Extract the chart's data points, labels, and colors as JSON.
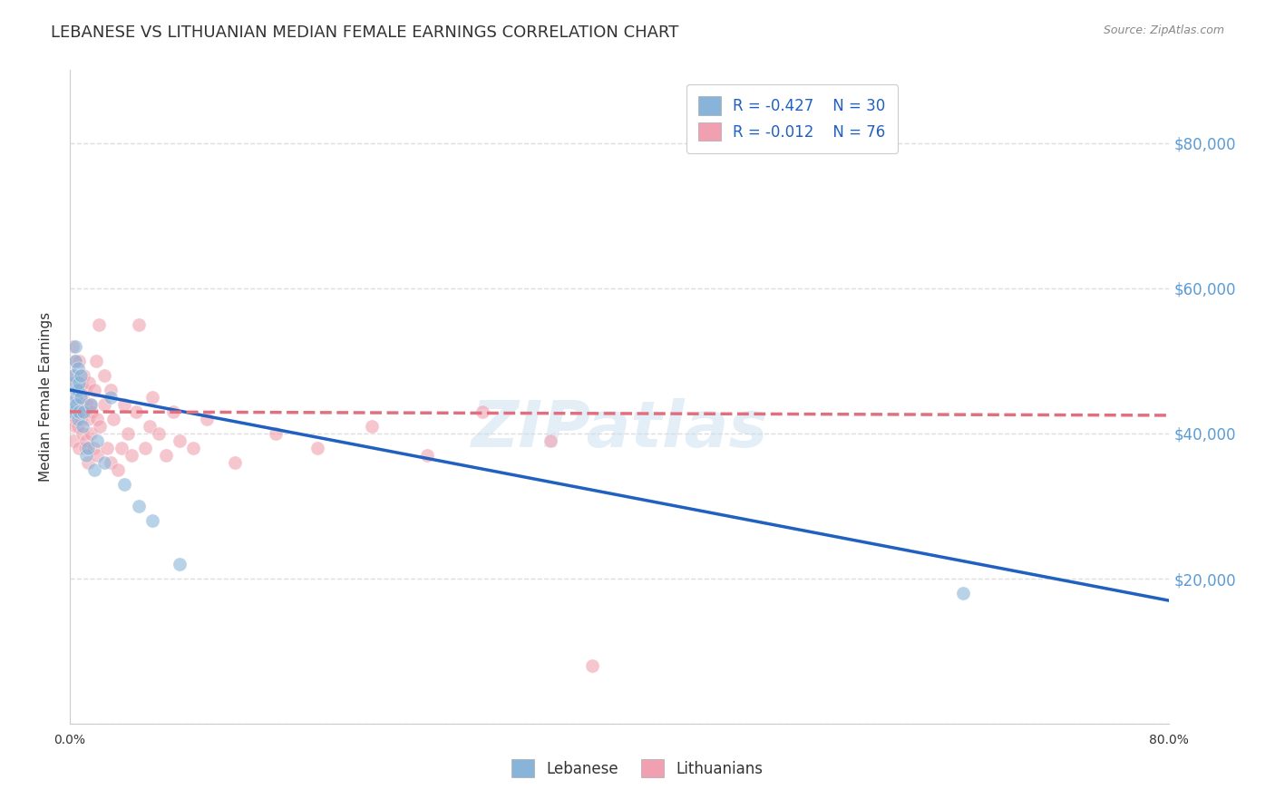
{
  "title": "LEBANESE VS LITHUANIAN MEDIAN FEMALE EARNINGS CORRELATION CHART",
  "source": "Source: ZipAtlas.com",
  "ylabel": "Median Female Earnings",
  "watermark": "ZIPatlas",
  "legend_entries": [
    {
      "label": "Lebanese",
      "R": -0.427,
      "N": 30
    },
    {
      "label": "Lithuanians",
      "R": -0.012,
      "N": 76
    }
  ],
  "xlim": [
    0.0,
    0.8
  ],
  "ylim": [
    0,
    90000
  ],
  "ytick_positions": [
    0,
    20000,
    40000,
    60000,
    80000
  ],
  "ytick_labels_right": [
    "",
    "$20,000",
    "$40,000",
    "$60,000",
    "$80,000"
  ],
  "xtick_positions": [
    0.0,
    0.1,
    0.2,
    0.3,
    0.4,
    0.5,
    0.6,
    0.7,
    0.8
  ],
  "xtick_labels": [
    "0.0%",
    "",
    "",
    "",
    "",
    "",
    "",
    "",
    "80.0%"
  ],
  "background_color": "#ffffff",
  "grid_color": "#dddddd",
  "title_fontsize": 13,
  "axis_label_fontsize": 11,
  "tick_fontsize": 10,
  "right_tick_color": "#5b9bd5",
  "blue_scatter": {
    "x": [
      0.001,
      0.002,
      0.003,
      0.003,
      0.004,
      0.004,
      0.005,
      0.005,
      0.005,
      0.006,
      0.006,
      0.006,
      0.007,
      0.007,
      0.008,
      0.008,
      0.009,
      0.01,
      0.012,
      0.013,
      0.015,
      0.018,
      0.02,
      0.025,
      0.03,
      0.04,
      0.05,
      0.06,
      0.08,
      0.65
    ],
    "y": [
      44000,
      43000,
      47000,
      48000,
      50000,
      52000,
      45000,
      46000,
      44000,
      42000,
      46000,
      49000,
      43000,
      47000,
      45000,
      48000,
      41000,
      43000,
      37000,
      38000,
      44000,
      35000,
      39000,
      36000,
      45000,
      33000,
      30000,
      28000,
      22000,
      18000
    ]
  },
  "pink_scatter": {
    "x": [
      0.001,
      0.002,
      0.002,
      0.003,
      0.003,
      0.003,
      0.003,
      0.004,
      0.004,
      0.004,
      0.004,
      0.005,
      0.005,
      0.005,
      0.005,
      0.006,
      0.006,
      0.006,
      0.006,
      0.007,
      0.007,
      0.007,
      0.008,
      0.008,
      0.008,
      0.009,
      0.009,
      0.01,
      0.01,
      0.011,
      0.011,
      0.012,
      0.012,
      0.013,
      0.013,
      0.014,
      0.015,
      0.015,
      0.016,
      0.017,
      0.018,
      0.019,
      0.02,
      0.02,
      0.021,
      0.022,
      0.025,
      0.025,
      0.027,
      0.03,
      0.03,
      0.032,
      0.035,
      0.038,
      0.04,
      0.042,
      0.045,
      0.048,
      0.05,
      0.055,
      0.058,
      0.06,
      0.065,
      0.07,
      0.075,
      0.08,
      0.09,
      0.1,
      0.12,
      0.15,
      0.18,
      0.22,
      0.26,
      0.3,
      0.35,
      0.38
    ],
    "y": [
      42000,
      43000,
      52000,
      44000,
      48000,
      46000,
      39000,
      50000,
      44000,
      41000,
      46000,
      45000,
      42000,
      43000,
      47000,
      46000,
      44000,
      43000,
      41000,
      50000,
      46000,
      38000,
      47000,
      44000,
      42000,
      45000,
      40000,
      48000,
      43000,
      46000,
      38000,
      44000,
      39000,
      42000,
      36000,
      47000,
      44000,
      40000,
      43000,
      38000,
      46000,
      50000,
      37000,
      42000,
      55000,
      41000,
      48000,
      44000,
      38000,
      46000,
      36000,
      42000,
      35000,
      38000,
      44000,
      40000,
      37000,
      43000,
      55000,
      38000,
      41000,
      45000,
      40000,
      37000,
      43000,
      39000,
      38000,
      42000,
      36000,
      40000,
      38000,
      41000,
      37000,
      43000,
      39000,
      8000
    ]
  },
  "blue_line_x": [
    0.0,
    0.8
  ],
  "blue_line_y": [
    46000,
    17000
  ],
  "pink_line_x": [
    0.0,
    0.8
  ],
  "pink_line_y": [
    43000,
    42500
  ],
  "blue_line_color": "#2060c0",
  "pink_line_color": "#e07080",
  "scatter_blue_color": "#89b4d9",
  "scatter_pink_color": "#f0a0b0",
  "scatter_alpha": 0.6,
  "scatter_size": 120,
  "scatter_edge_color": "#ffffff",
  "scatter_edge_width": 0.5
}
